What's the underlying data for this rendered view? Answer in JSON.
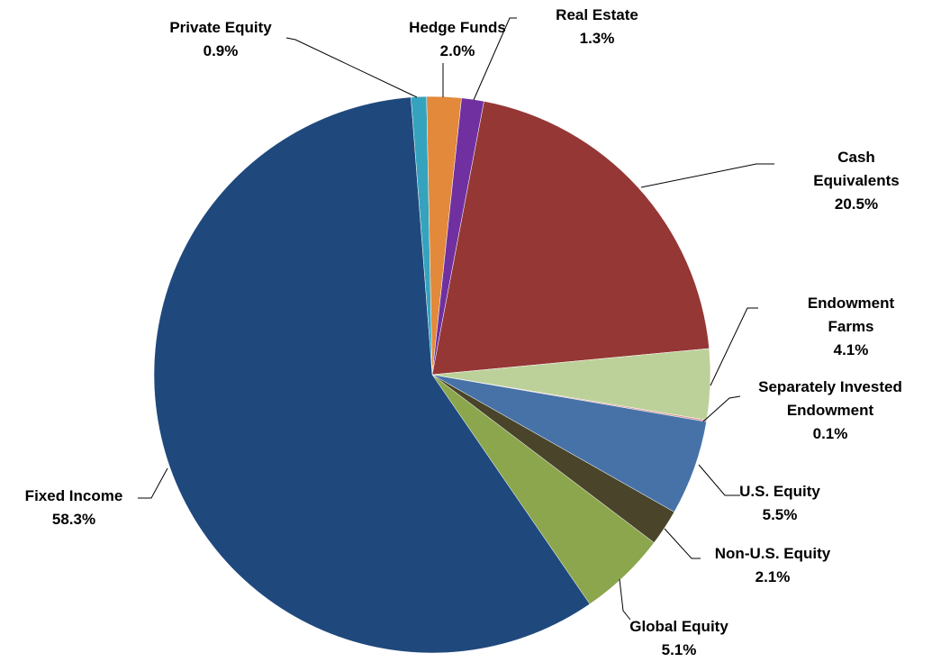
{
  "chart_data": {
    "type": "pie",
    "categories": [
      "Private Equity",
      "Hedge Funds",
      "Real Estate",
      "Cash Equivalents",
      "Endowment Farms",
      "Separately Invested Endowment",
      "U.S. Equity",
      "Non-U.S. Equity",
      "Global Equity",
      "Fixed Income"
    ],
    "values": [
      0.9,
      2.0,
      1.3,
      20.5,
      4.1,
      0.1,
      5.5,
      2.1,
      5.1,
      58.3
    ],
    "value_labels": [
      "0.9%",
      "2.0%",
      "1.3%",
      "20.5%",
      "4.1%",
      "0.1%",
      "5.5%",
      "2.1%",
      "5.1%",
      "58.3%"
    ],
    "colors": [
      "#35a3bd",
      "#e2893b",
      "#7030a0",
      "#953735",
      "#bcd19a",
      "#d99694",
      "#4672a8",
      "#4a452a",
      "#8ba64d",
      "#1f497d"
    ]
  }
}
